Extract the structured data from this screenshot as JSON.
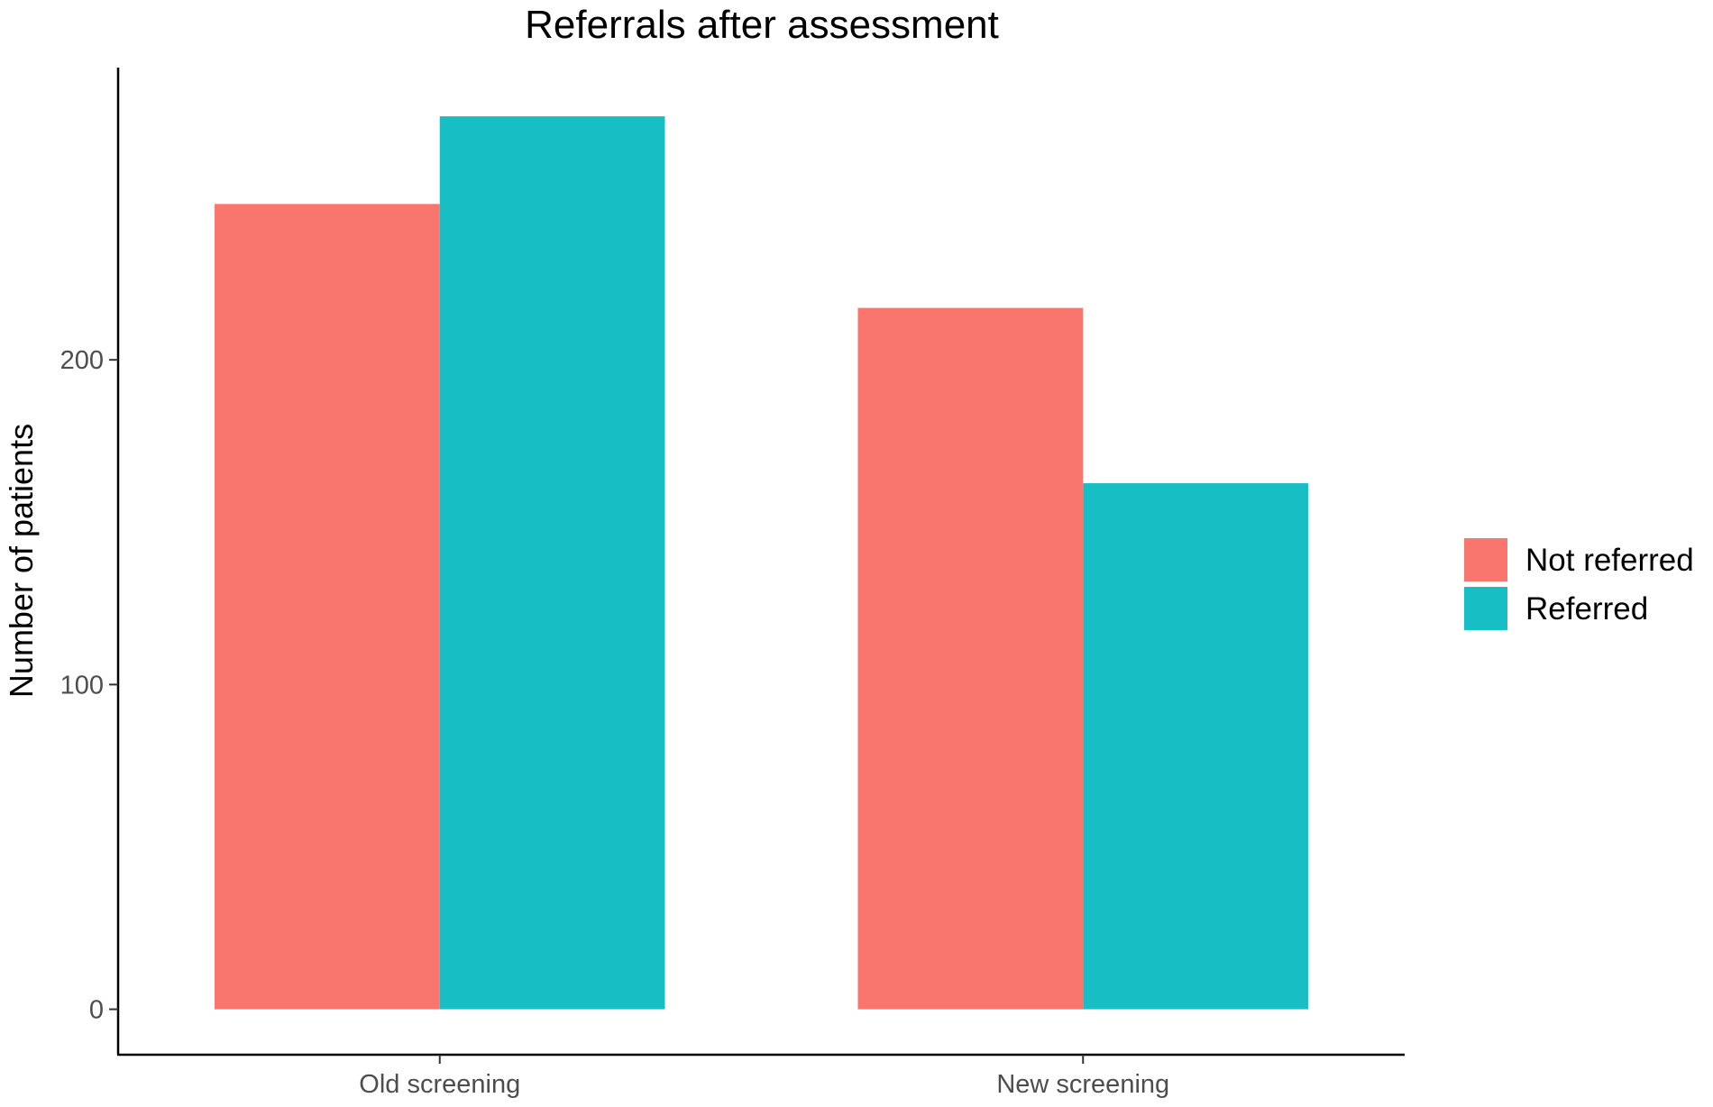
{
  "chart_data": {
    "type": "bar",
    "title": "Referrals after assessment",
    "xlabel": "",
    "ylabel": "Number of patients",
    "categories": [
      "Old screening",
      "New screening"
    ],
    "series": [
      {
        "name": "Not referred",
        "color": "#F8766D",
        "values": [
          248,
          216
        ]
      },
      {
        "name": "Referred",
        "color": "#17BEC4",
        "values": [
          275,
          162
        ]
      }
    ],
    "yticks": [
      0,
      100,
      200
    ],
    "ylim": [
      -14,
      290
    ],
    "grid": false,
    "legend_position": "right"
  }
}
